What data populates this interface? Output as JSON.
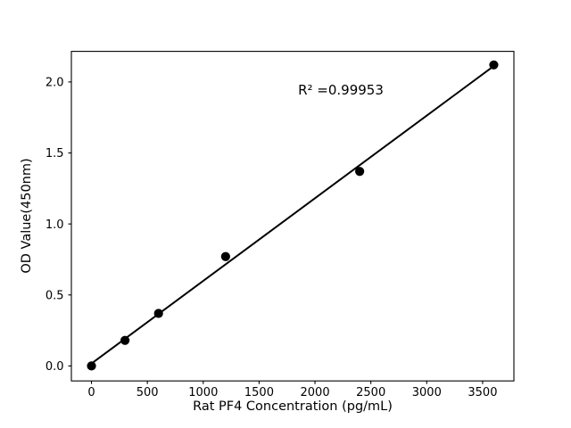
{
  "figure": {
    "background_color": "#ffffff",
    "foreground_color": "#000000",
    "annotation": "R² =0.99953",
    "x_axis_label": "Rat PF4 Concentration (pg/mL)",
    "y_axis_label": "OD Value(450nm)"
  },
  "chart_data": {
    "type": "scatter",
    "title": "",
    "xlabel": "Rat PF4 Concentration (pg/mL)",
    "ylabel": "OD Value(450nm)",
    "x": [
      0,
      300,
      600,
      1200,
      2400,
      3600
    ],
    "y": [
      0.0,
      0.18,
      0.37,
      0.77,
      1.37,
      2.12
    ],
    "fit_line": {
      "slope": 0.000582,
      "intercept": 0.017,
      "x_start": 0,
      "x_end": 3600,
      "r_squared": 0.99953,
      "label": "R² =0.99953"
    },
    "xlim": [
      -180,
      3780
    ],
    "ylim": [
      -0.1055,
      2.2155
    ],
    "x_ticks": [
      "0",
      "500",
      "1000",
      "1500",
      "2000",
      "2500",
      "3000",
      "3500"
    ],
    "y_ticks": [
      "0.0",
      "0.5",
      "1.0",
      "1.5",
      "2.0"
    ],
    "marker_color": "#000000",
    "line_color": "#000000",
    "grid": false,
    "legend": "none"
  }
}
